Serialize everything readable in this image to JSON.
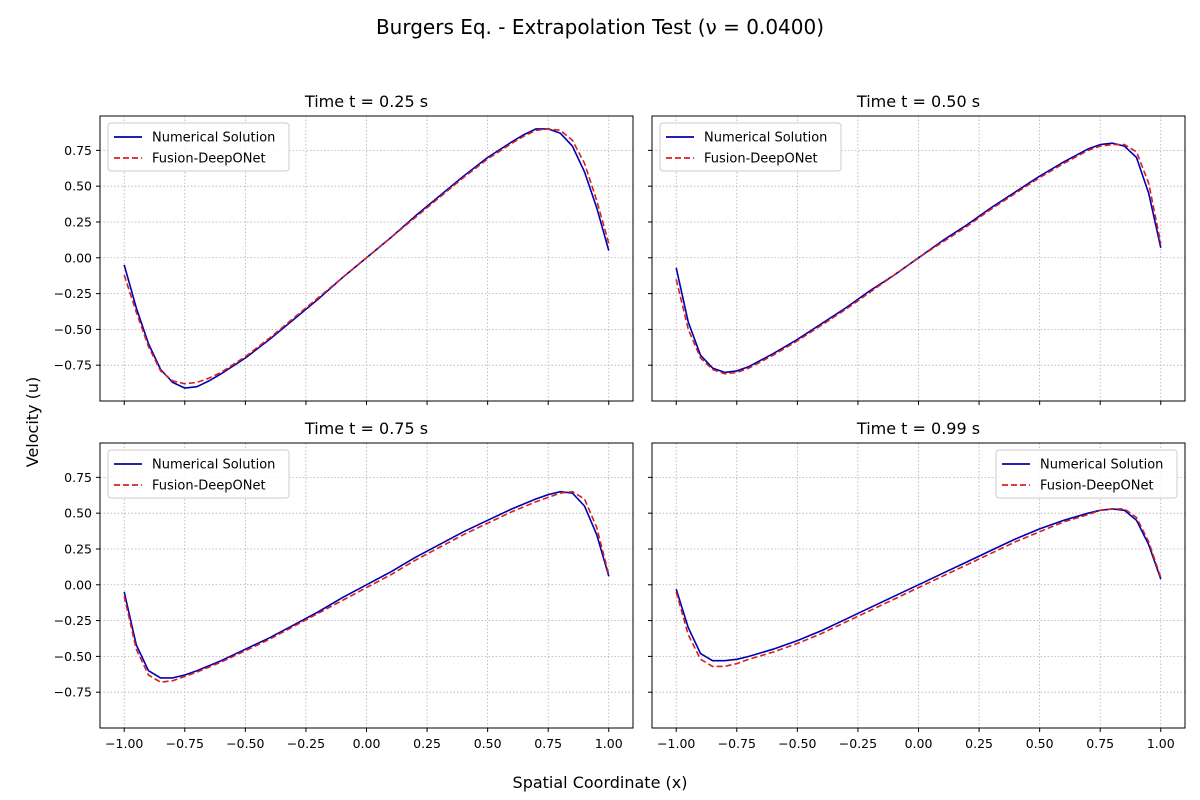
{
  "figure": {
    "title": "Burgers Eq. - Extrapolation Test (ν = 0.0400)",
    "xlabel": "Spatial Coordinate (x)",
    "ylabel": "Velocity (u)"
  },
  "colors": {
    "numerical": "#0000b4",
    "deeponet": "#d62020",
    "grid": "#b0b0b0"
  },
  "chart_data": [
    {
      "type": "line",
      "title": "Time t = 0.25 s",
      "xlim": [
        -1.1,
        1.1
      ],
      "ylim": [
        -1.0,
        0.99
      ],
      "grid": true,
      "legend_position": "upper-left",
      "xticks": [
        "-1.00",
        "-0.75",
        "-0.50",
        "-0.25",
        "0.00",
        "0.25",
        "0.50",
        "0.75",
        "1.00"
      ],
      "yticks": [
        "0.75",
        "0.50",
        "0.25",
        "0.00",
        "-0.25",
        "-0.50",
        "-0.75"
      ],
      "x": [
        -1.0,
        -0.95,
        -0.9,
        -0.85,
        -0.8,
        -0.75,
        -0.7,
        -0.65,
        -0.6,
        -0.5,
        -0.4,
        -0.3,
        -0.2,
        -0.1,
        0.0,
        0.1,
        0.2,
        0.3,
        0.4,
        0.5,
        0.6,
        0.65,
        0.7,
        0.75,
        0.8,
        0.85,
        0.9,
        0.95,
        1.0
      ],
      "series": [
        {
          "name": "Numerical Solution",
          "style": "solid",
          "values": [
            -0.05,
            -0.35,
            -0.6,
            -0.78,
            -0.87,
            -0.91,
            -0.9,
            -0.86,
            -0.81,
            -0.7,
            -0.57,
            -0.43,
            -0.29,
            -0.14,
            0.0,
            0.14,
            0.29,
            0.43,
            0.57,
            0.7,
            0.81,
            0.86,
            0.9,
            0.9,
            0.87,
            0.78,
            0.6,
            0.35,
            0.05
          ]
        },
        {
          "name": "Fusion-DeepONet",
          "style": "dashed",
          "values": [
            -0.12,
            -0.38,
            -0.62,
            -0.79,
            -0.86,
            -0.88,
            -0.87,
            -0.84,
            -0.8,
            -0.69,
            -0.56,
            -0.42,
            -0.28,
            -0.14,
            0.0,
            0.14,
            0.28,
            0.42,
            0.56,
            0.69,
            0.8,
            0.85,
            0.89,
            0.9,
            0.89,
            0.82,
            0.66,
            0.4,
            0.1
          ]
        }
      ]
    },
    {
      "type": "line",
      "title": "Time t = 0.50 s",
      "xlim": [
        -1.1,
        1.1
      ],
      "ylim": [
        -1.0,
        0.99
      ],
      "grid": true,
      "legend_position": "upper-left",
      "xticks": [
        "-1.00",
        "-0.75",
        "-0.50",
        "-0.25",
        "0.00",
        "0.25",
        "0.50",
        "0.75",
        "1.00"
      ],
      "yticks": [
        "0.75",
        "0.50",
        "0.25",
        "0.00",
        "-0.25",
        "-0.50",
        "-0.75"
      ],
      "x": [
        -1.0,
        -0.95,
        -0.9,
        -0.85,
        -0.8,
        -0.75,
        -0.7,
        -0.6,
        -0.5,
        -0.4,
        -0.3,
        -0.2,
        -0.1,
        0.0,
        0.1,
        0.2,
        0.3,
        0.4,
        0.5,
        0.6,
        0.7,
        0.75,
        0.8,
        0.85,
        0.9,
        0.95,
        1.0
      ],
      "series": [
        {
          "name": "Numerical Solution",
          "style": "solid",
          "values": [
            -0.07,
            -0.45,
            -0.68,
            -0.77,
            -0.8,
            -0.79,
            -0.76,
            -0.67,
            -0.57,
            -0.46,
            -0.35,
            -0.23,
            -0.12,
            0.0,
            0.12,
            0.23,
            0.35,
            0.46,
            0.57,
            0.67,
            0.76,
            0.79,
            0.8,
            0.78,
            0.7,
            0.45,
            0.07
          ]
        },
        {
          "name": "Fusion-DeepONet",
          "style": "dashed",
          "values": [
            -0.15,
            -0.5,
            -0.7,
            -0.78,
            -0.81,
            -0.8,
            -0.77,
            -0.68,
            -0.58,
            -0.47,
            -0.36,
            -0.24,
            -0.12,
            0.0,
            0.11,
            0.22,
            0.34,
            0.45,
            0.56,
            0.66,
            0.75,
            0.78,
            0.79,
            0.79,
            0.74,
            0.52,
            0.1
          ]
        }
      ]
    },
    {
      "type": "line",
      "title": "Time t = 0.75 s",
      "xlim": [
        -1.1,
        1.1
      ],
      "ylim": [
        -1.0,
        0.99
      ],
      "grid": true,
      "legend_position": "upper-left",
      "xticks": [
        "-1.00",
        "-0.75",
        "-0.50",
        "-0.25",
        "0.00",
        "0.25",
        "0.50",
        "0.75",
        "1.00"
      ],
      "yticks": [
        "0.75",
        "0.50",
        "0.25",
        "0.00",
        "-0.25",
        "-0.50",
        "-0.75"
      ],
      "x": [
        -1.0,
        -0.95,
        -0.9,
        -0.85,
        -0.8,
        -0.75,
        -0.7,
        -0.6,
        -0.5,
        -0.4,
        -0.3,
        -0.2,
        -0.1,
        0.0,
        0.1,
        0.2,
        0.3,
        0.4,
        0.5,
        0.6,
        0.7,
        0.75,
        0.8,
        0.85,
        0.9,
        0.95,
        1.0
      ],
      "series": [
        {
          "name": "Numerical Solution",
          "style": "solid",
          "values": [
            -0.05,
            -0.42,
            -0.6,
            -0.65,
            -0.65,
            -0.63,
            -0.6,
            -0.53,
            -0.45,
            -0.37,
            -0.28,
            -0.19,
            -0.09,
            0.0,
            0.09,
            0.19,
            0.28,
            0.37,
            0.45,
            0.53,
            0.6,
            0.63,
            0.65,
            0.64,
            0.55,
            0.35,
            0.06
          ]
        },
        {
          "name": "Fusion-DeepONet",
          "style": "dashed",
          "values": [
            -0.08,
            -0.45,
            -0.63,
            -0.68,
            -0.67,
            -0.64,
            -0.61,
            -0.54,
            -0.46,
            -0.38,
            -0.29,
            -0.2,
            -0.11,
            -0.02,
            0.07,
            0.17,
            0.26,
            0.35,
            0.43,
            0.51,
            0.58,
            0.61,
            0.64,
            0.65,
            0.6,
            0.4,
            0.07
          ]
        }
      ]
    },
    {
      "type": "line",
      "title": "Time t = 0.99 s",
      "xlim": [
        -1.1,
        1.1
      ],
      "ylim": [
        -1.0,
        0.99
      ],
      "grid": true,
      "legend_position": "upper-right",
      "xticks": [
        "-1.00",
        "-0.75",
        "-0.50",
        "-0.25",
        "0.00",
        "0.25",
        "0.50",
        "0.75",
        "1.00"
      ],
      "yticks": [
        "0.75",
        "0.50",
        "0.25",
        "0.00",
        "-0.25",
        "-0.50",
        "-0.75"
      ],
      "x": [
        -1.0,
        -0.95,
        -0.9,
        -0.85,
        -0.8,
        -0.75,
        -0.7,
        -0.6,
        -0.5,
        -0.4,
        -0.3,
        -0.2,
        -0.1,
        0.0,
        0.1,
        0.2,
        0.3,
        0.4,
        0.5,
        0.6,
        0.7,
        0.75,
        0.8,
        0.85,
        0.9,
        0.95,
        1.0
      ],
      "series": [
        {
          "name": "Numerical Solution",
          "style": "solid",
          "values": [
            -0.03,
            -0.3,
            -0.48,
            -0.53,
            -0.53,
            -0.52,
            -0.5,
            -0.45,
            -0.39,
            -0.32,
            -0.24,
            -0.16,
            -0.08,
            0.0,
            0.08,
            0.16,
            0.24,
            0.32,
            0.39,
            0.45,
            0.5,
            0.52,
            0.53,
            0.52,
            0.45,
            0.28,
            0.04
          ]
        },
        {
          "name": "Fusion-DeepONet",
          "style": "dashed",
          "values": [
            -0.05,
            -0.35,
            -0.52,
            -0.57,
            -0.57,
            -0.55,
            -0.52,
            -0.47,
            -0.41,
            -0.34,
            -0.26,
            -0.18,
            -0.1,
            -0.02,
            0.06,
            0.14,
            0.22,
            0.3,
            0.37,
            0.44,
            0.49,
            0.52,
            0.53,
            0.53,
            0.47,
            0.3,
            0.05
          ]
        }
      ]
    }
  ]
}
